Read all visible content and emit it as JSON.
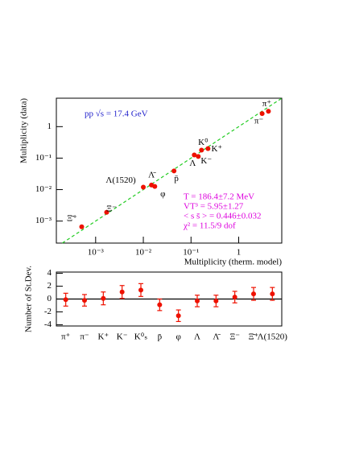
{
  "chart_data": [
    {
      "type": "scatter",
      "title": "pp √s = 17.4 GeV",
      "x_label": "Multiplicity (therm. model)",
      "y_label": "Multiplicity (data)",
      "log_x": true,
      "log_y": true,
      "xlim": [
        0.00015,
        8
      ],
      "ylim": [
        0.0002,
        8
      ],
      "xticks": [
        {
          "value": 0.001,
          "label": "10⁻³"
        },
        {
          "value": 0.01,
          "label": "10⁻²"
        },
        {
          "value": 0.1,
          "label": "10⁻¹"
        },
        1
      ],
      "yticks": [
        {
          "value": 0.001,
          "label": "10⁻³"
        },
        {
          "value": 0.01,
          "label": "10⁻²"
        },
        {
          "value": 0.1,
          "label": "10⁻¹"
        },
        1
      ],
      "diagonal": true,
      "diagonal_color": "#22cc22",
      "series": [
        {
          "color": "#ee1100",
          "labels": [
            "Ξ̄⁺",
            "Ξ⁻",
            "Λ(1520)",
            "Λ̄",
            "φ",
            "p̄",
            "Λ",
            "K⁻",
            "K⁰",
            "K⁺",
            "π⁻",
            "π⁺"
          ],
          "x": [
            0.00051,
            0.0017,
            0.01,
            0.0148,
            0.0174,
            0.044,
            0.117,
            0.142,
            0.166,
            0.227,
            3.1,
            4.2
          ],
          "values": [
            0.00066,
            0.0019,
            0.012,
            0.014,
            0.0126,
            0.039,
            0.126,
            0.113,
            0.18,
            0.2,
            2.6,
            3.07
          ]
        }
      ],
      "annotations": [
        "T = 186.4±7.2 MeV",
        "VT³ = 5.95±1.27",
        "< s s̄ > = 0.446±0.032",
        "χ² = 11.5/9 dof"
      ],
      "annotation_color": "#dd00dd",
      "title_color": "#2222cc"
    },
    {
      "type": "errorbar",
      "y_label": "Number of St.Dev.",
      "ylim": [
        -4.2,
        4.2
      ],
      "yticks": [
        -4,
        -2,
        0,
        2,
        4
      ],
      "zero_line": true,
      "color": "#ee1100",
      "categories": [
        "π⁺",
        "π⁻",
        "K⁺",
        "K⁻",
        "K⁰ₛ",
        "p̄",
        "φ",
        "Λ",
        "Λ̄",
        "Ξ⁻",
        "Ξ̄⁺",
        "Λ(1520)"
      ],
      "values": [
        -0.1,
        -0.2,
        0.1,
        1.1,
        1.4,
        -0.9,
        -2.6,
        -0.3,
        -0.3,
        0.3,
        0.8,
        0.8
      ],
      "errors": [
        1.0,
        0.9,
        1.0,
        1.0,
        1.0,
        0.9,
        0.9,
        0.9,
        0.9,
        0.9,
        1.0,
        1.0
      ]
    }
  ]
}
